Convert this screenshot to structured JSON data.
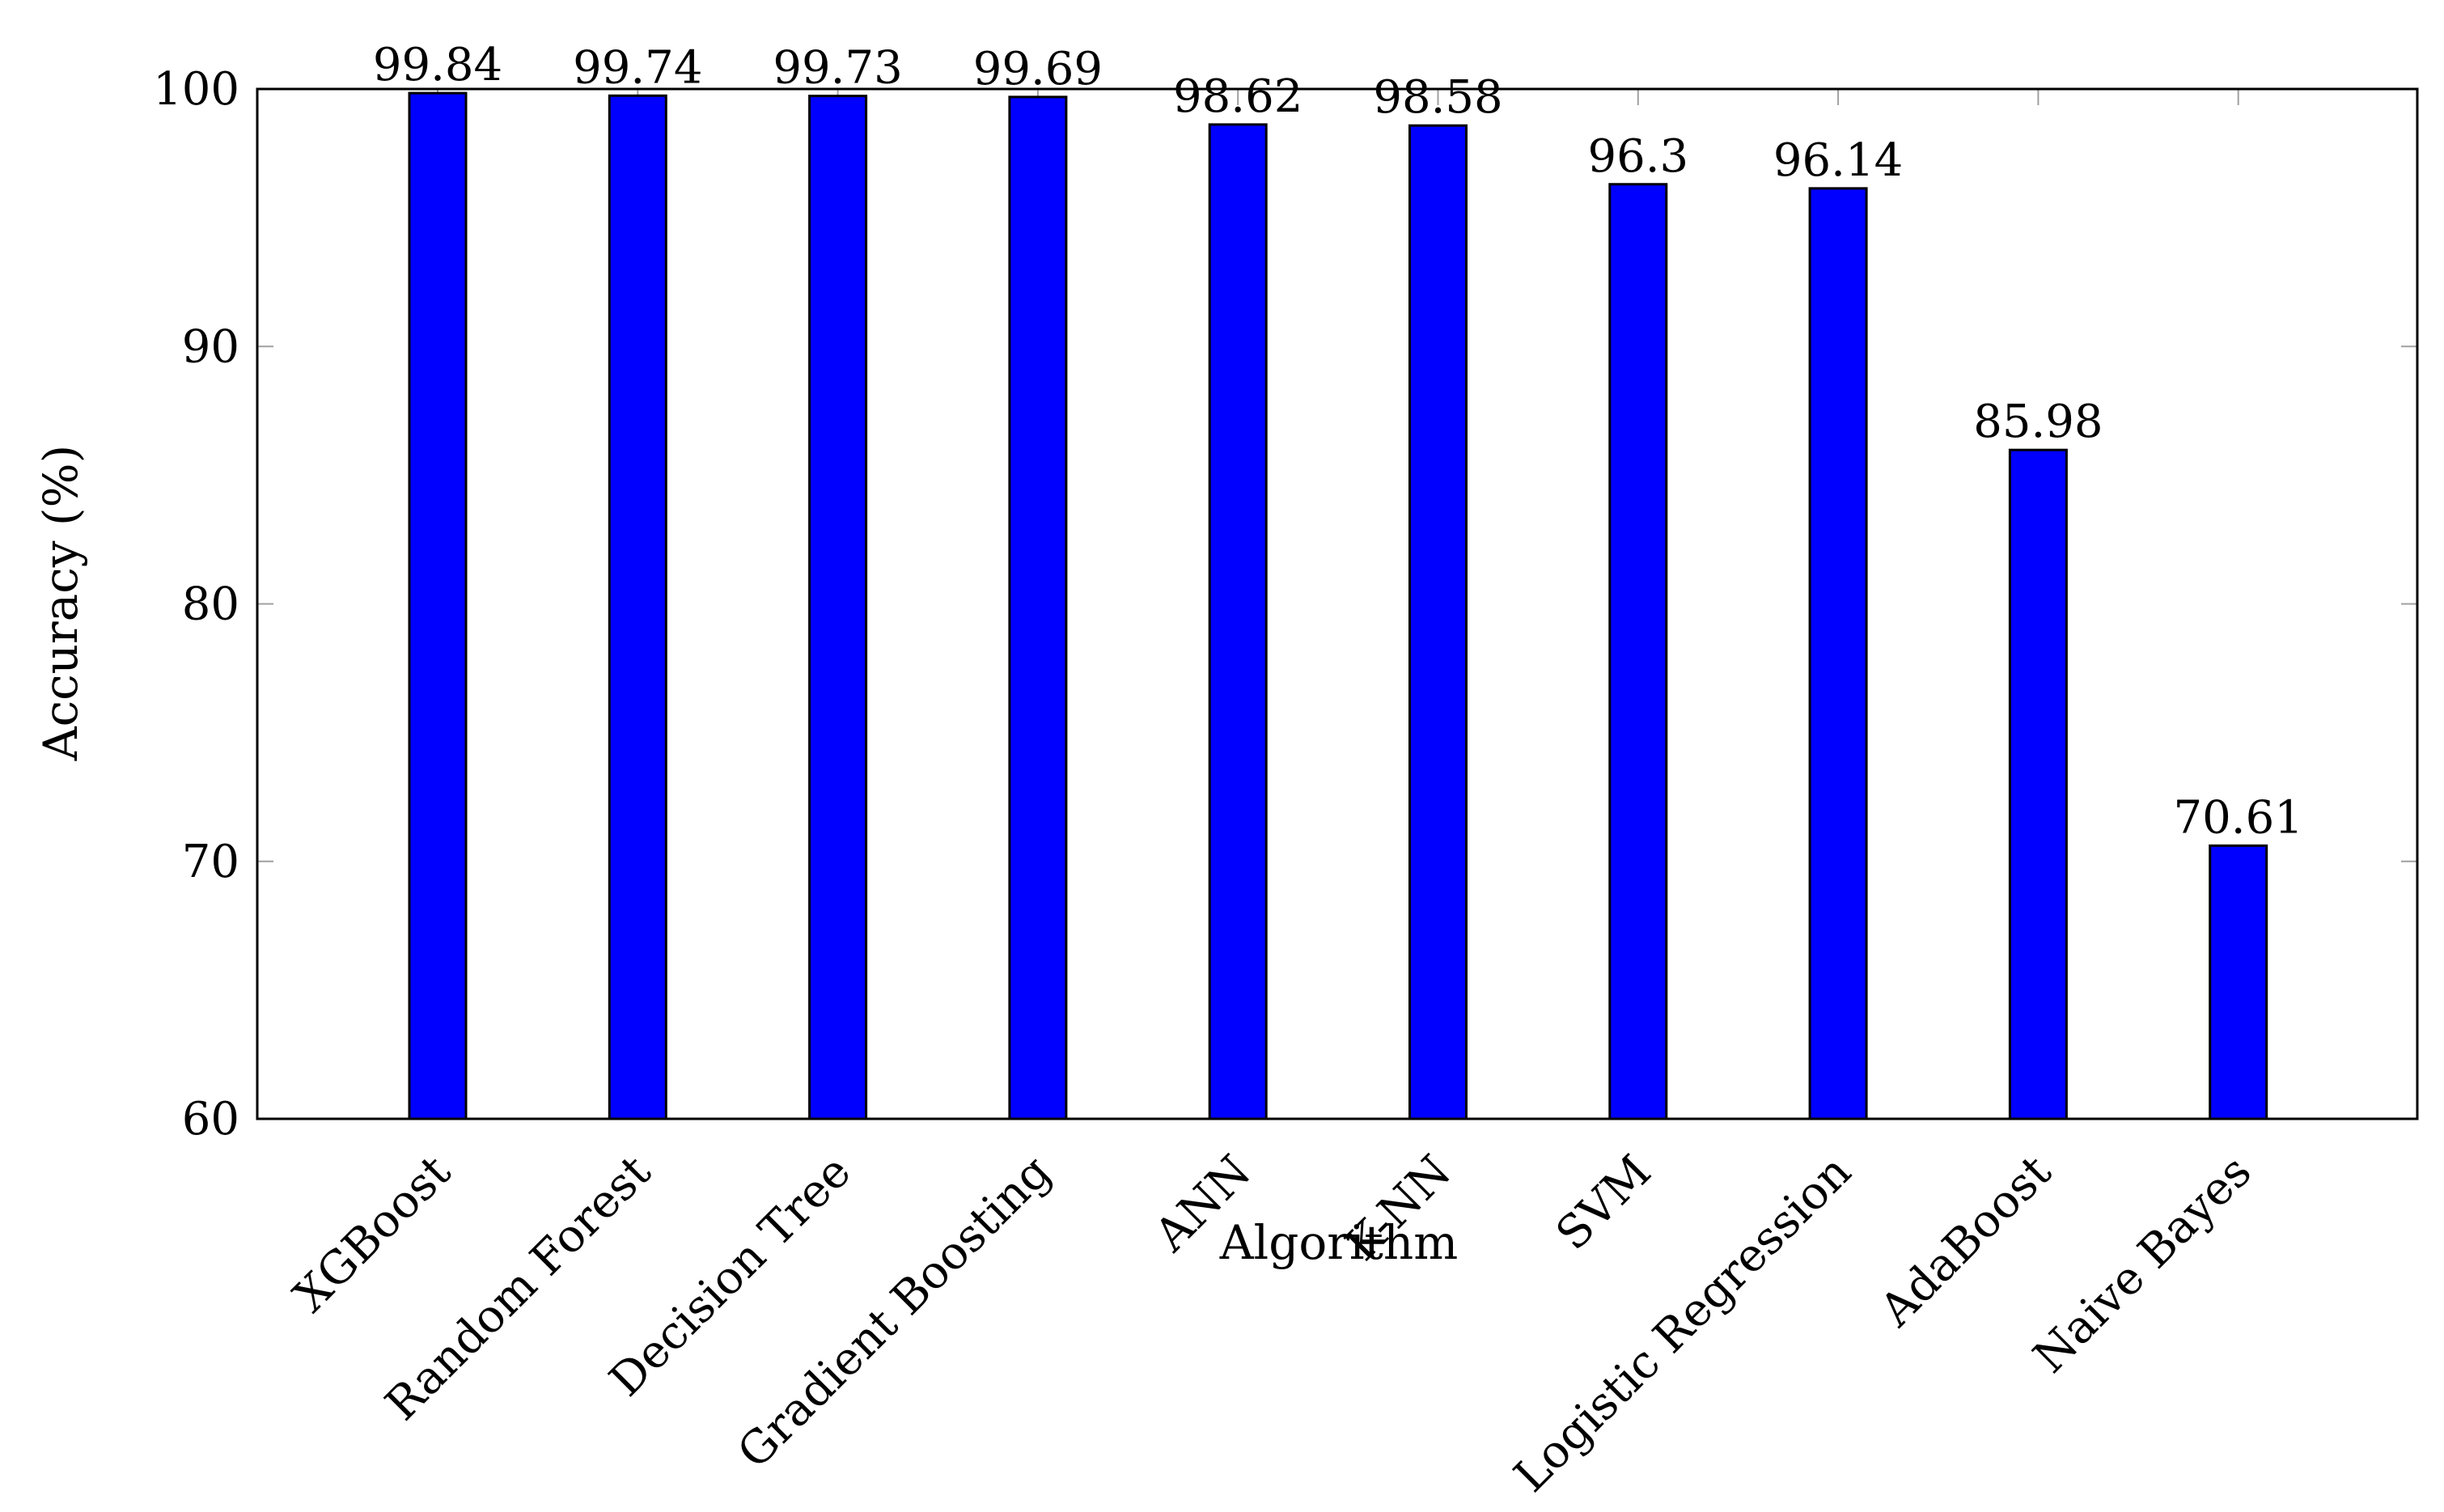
{
  "chart_data": {
    "type": "bar",
    "title": "",
    "xlabel": "Algorithm",
    "ylabel": "Accuracy (%)",
    "categories": [
      "XGBoost",
      "Random Forest",
      "Decision Tree",
      "Gradient Boosting",
      "ANN",
      "K-NN",
      "SVM",
      "Logistic Regression",
      "AdaBoost",
      "Naive Bayes"
    ],
    "values": [
      99.84,
      99.74,
      99.73,
      99.69,
      98.62,
      98.58,
      96.3,
      96.14,
      85.98,
      70.61
    ],
    "value_labels": [
      "99.84",
      "99.74",
      "99.73",
      "99.69",
      "98.62",
      "98.58",
      "96.3",
      "96.14",
      "85.98",
      "70.61"
    ],
    "ylim": [
      60,
      100
    ],
    "yticks": [
      60,
      70,
      80,
      90,
      100
    ],
    "ytick_labels": [
      "60",
      "70",
      "80",
      "90",
      "100"
    ],
    "grid": false,
    "legend": "none",
    "bar_color": "#0000ff",
    "bar_edge_color": "#000000"
  }
}
